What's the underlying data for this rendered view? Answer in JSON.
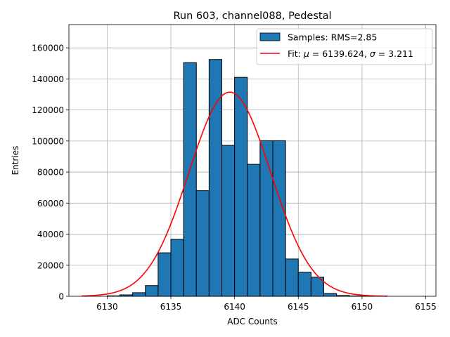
{
  "chart_data": {
    "type": "bar",
    "title": "Run 603, channel088, Pedestal",
    "xlabel": "ADC Counts",
    "ylabel": "Entries",
    "xlim": [
      6127.0,
      6155.8
    ],
    "ylim": [
      0,
      175000
    ],
    "grid": true,
    "legend_location": "upper-right",
    "x_ticks": [
      6130,
      6135,
      6140,
      6145,
      6150,
      6155
    ],
    "y_ticks": [
      0,
      20000,
      40000,
      60000,
      80000,
      100000,
      120000,
      140000,
      160000
    ],
    "series": [
      {
        "name": "Samples: RMS=2.85",
        "kind": "histogram",
        "color": "#1f77b4",
        "edge_color": "#000000",
        "bin_edges": [
          6130,
          6131,
          6132,
          6133,
          6134,
          6135,
          6136,
          6137,
          6138,
          6139,
          6140,
          6141,
          6142,
          6143,
          6144,
          6145,
          6146,
          6147,
          6148,
          6149,
          6150,
          6151
        ],
        "values": [
          300,
          900,
          2300,
          6900,
          28000,
          36700,
          150500,
          68000,
          152500,
          97200,
          141000,
          85000,
          100200,
          100200,
          24000,
          15500,
          12300,
          1800,
          500,
          200,
          80
        ]
      },
      {
        "name_prefix": "Fit: ",
        "name_mu_symbol": "μ",
        "name_mu_value": " = 6139.624, ",
        "name_sigma_symbol": "σ",
        "name_sigma_value": " = 3.211",
        "kind": "gaussian-fit",
        "color": "#ff0000",
        "mu": 6139.624,
        "sigma": 3.211,
        "amplitude": 131500,
        "x_range": [
          6128,
          6152
        ]
      }
    ]
  }
}
